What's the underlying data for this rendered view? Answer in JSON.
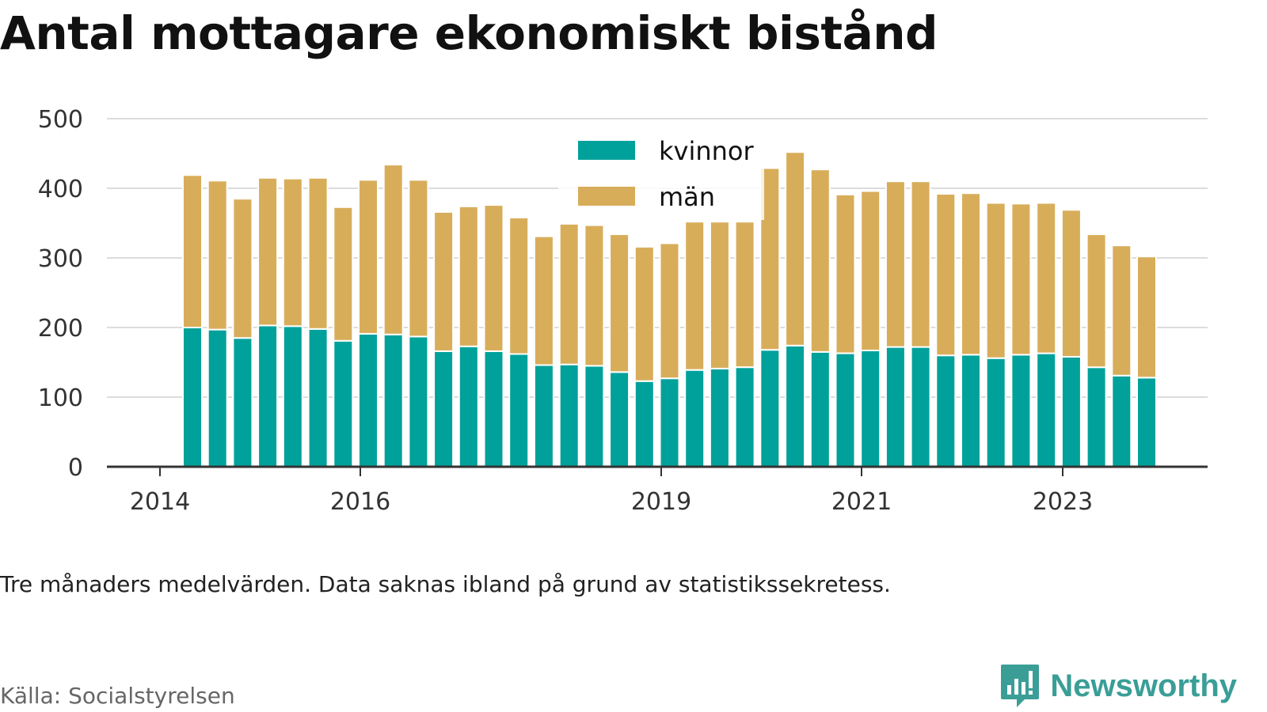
{
  "title": "Antal mottagare ekonomiskt bistånd",
  "note": "Tre månaders medelvärden. Data saknas ibland på grund av statistikssekretess.",
  "source": "Källa: Socialstyrelsen",
  "brand": {
    "name": "Newsworthy",
    "icon": "newsworthy-logo-icon",
    "color": "#3a9e97"
  },
  "colors": {
    "kvinnor": "#00a19a",
    "man": "#d8ad5a",
    "grid": "#dcdcdc",
    "axis": "#333333"
  },
  "chart_data": {
    "type": "bar",
    "stacked": true,
    "ylim": [
      0,
      500
    ],
    "yticks": [
      0,
      100,
      200,
      300,
      400,
      500
    ],
    "xticks": [
      "2014",
      "2016",
      "2019",
      "2021",
      "2023"
    ],
    "legend_position": "top-center",
    "grid": true,
    "series": [
      {
        "name": "kvinnor",
        "color": "#00a19a",
        "values": [
          200,
          197,
          185,
          203,
          202,
          198,
          181,
          191,
          190,
          187,
          166,
          173,
          166,
          162,
          146,
          147,
          145,
          136,
          123,
          127,
          139,
          141,
          143,
          168,
          174,
          165,
          163,
          167,
          172,
          172,
          160,
          161,
          156,
          161,
          163,
          158,
          143,
          131,
          128
        ]
      },
      {
        "name": "män",
        "color": "#d8ad5a",
        "values": [
          219,
          214,
          200,
          212,
          212,
          217,
          192,
          221,
          244,
          225,
          200,
          201,
          210,
          196,
          185,
          202,
          202,
          198,
          193,
          194,
          213,
          211,
          209,
          261,
          278,
          262,
          228,
          229,
          238,
          238,
          232,
          232,
          223,
          217,
          216,
          211,
          191,
          187,
          174
        ]
      }
    ]
  }
}
